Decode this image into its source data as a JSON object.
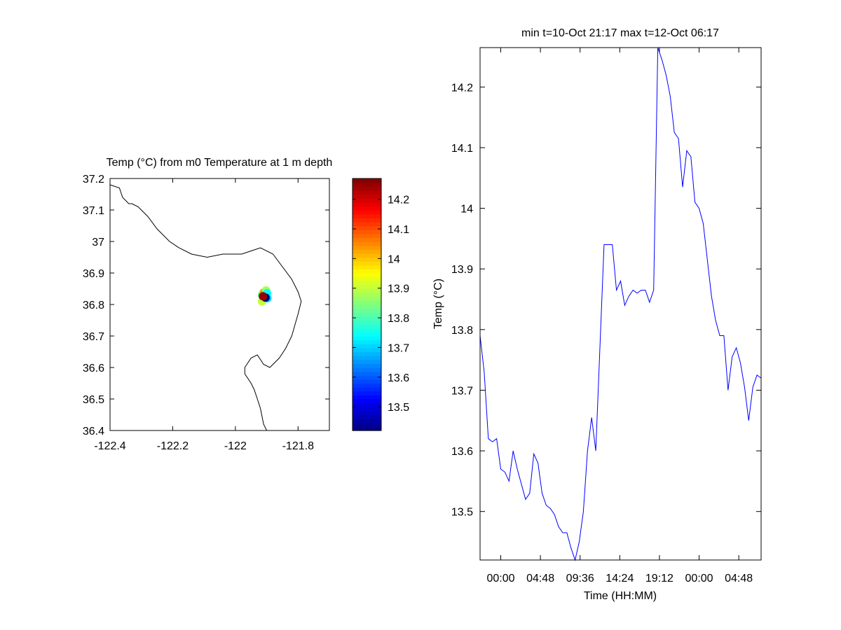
{
  "colors": {
    "axis": "#000000",
    "series": "#0000ff",
    "background": "#ffffff"
  },
  "chart_data": [
    {
      "type": "map",
      "title": "Temp (°C) from m0 Temperature at 1 m depth",
      "xlim": [
        -122.4,
        -121.7
      ],
      "ylim": [
        36.4,
        37.2
      ],
      "xticks": [
        -122.4,
        -122.2,
        -122,
        -121.8
      ],
      "xtick_labels": [
        "-122.4",
        "-122.2",
        "-122",
        "-121.8"
      ],
      "yticks": [
        37.2,
        37.1,
        37.0,
        36.9,
        36.8,
        36.7,
        36.6,
        36.5,
        36.4
      ],
      "ytick_labels": [
        "37.2",
        "37.1",
        "37",
        "36.9",
        "36.8",
        "36.7",
        "36.6",
        "36.5",
        "36.4"
      ],
      "coastline": [
        [
          -122.4,
          37.18
        ],
        [
          -122.37,
          37.17
        ],
        [
          -122.36,
          37.14
        ],
        [
          -122.34,
          37.12
        ],
        [
          -122.33,
          37.12
        ],
        [
          -122.31,
          37.11
        ],
        [
          -122.28,
          37.08
        ],
        [
          -122.25,
          37.04
        ],
        [
          -122.21,
          37.0
        ],
        [
          -122.18,
          36.98
        ],
        [
          -122.14,
          36.96
        ],
        [
          -122.09,
          36.95
        ],
        [
          -122.04,
          36.96
        ],
        [
          -121.98,
          36.96
        ],
        [
          -121.95,
          36.97
        ],
        [
          -121.92,
          36.98
        ],
        [
          -121.88,
          36.96
        ],
        [
          -121.85,
          36.92
        ],
        [
          -121.82,
          36.88
        ],
        [
          -121.8,
          36.84
        ],
        [
          -121.79,
          36.81
        ],
        [
          -121.8,
          36.77
        ],
        [
          -121.82,
          36.7
        ],
        [
          -121.84,
          36.66
        ],
        [
          -121.86,
          36.63
        ],
        [
          -121.89,
          36.6
        ],
        [
          -121.91,
          36.61
        ],
        [
          -121.93,
          36.64
        ],
        [
          -121.95,
          36.63
        ],
        [
          -121.97,
          36.6
        ],
        [
          -121.97,
          36.58
        ],
        [
          -121.95,
          36.55
        ],
        [
          -121.94,
          36.53
        ],
        [
          -121.93,
          36.5
        ],
        [
          -121.92,
          36.47
        ],
        [
          -121.91,
          36.42
        ],
        [
          -121.9,
          36.4
        ]
      ],
      "colorbar": {
        "min": 13.42,
        "max": 14.27,
        "ticks": [
          13.5,
          13.6,
          13.7,
          13.8,
          13.9,
          14.0,
          14.1,
          14.2
        ],
        "tick_labels": [
          "13.5",
          "13.6",
          "13.7",
          "13.8",
          "13.9",
          "14",
          "14.1",
          "14.2"
        ]
      },
      "points": [
        {
          "lon": -121.915,
          "lat": 36.81,
          "value": 13.9
        },
        {
          "lon": -121.915,
          "lat": 36.83,
          "value": 13.82
        },
        {
          "lon": -121.91,
          "lat": 36.838,
          "value": 14.02
        },
        {
          "lon": -121.905,
          "lat": 36.84,
          "value": 13.7
        },
        {
          "lon": -121.902,
          "lat": 36.845,
          "value": 13.88
        },
        {
          "lon": -121.899,
          "lat": 36.836,
          "value": 13.74
        },
        {
          "lon": -121.898,
          "lat": 36.82,
          "value": 13.7
        },
        {
          "lon": -121.904,
          "lat": 36.822,
          "value": 13.42
        },
        {
          "lon": -121.912,
          "lat": 36.826,
          "value": 14.25
        }
      ]
    },
    {
      "type": "line",
      "title": "min t=10-Oct 21:17 max t=12-Oct 06:17",
      "xlabel": "Time (HH:MM)",
      "ylabel": "Temp (°C)",
      "xlim": [
        -2.5,
        31.5
      ],
      "ylim": [
        13.42,
        14.265
      ],
      "xticks": [
        0,
        4.8,
        9.6,
        14.4,
        19.2,
        24.0,
        28.8
      ],
      "xtick_labels": [
        "00:00",
        "04:48",
        "09:36",
        "14:24",
        "19:12",
        "00:00",
        "04:48"
      ],
      "yticks": [
        13.5,
        13.6,
        13.7,
        13.8,
        13.9,
        14.0,
        14.1,
        14.2
      ],
      "ytick_labels": [
        "13.5",
        "13.6",
        "13.7",
        "13.8",
        "13.9",
        "14",
        "14.1",
        "14.2"
      ],
      "series": [
        {
          "name": "Temp",
          "x": [
            -2.5,
            -2.0,
            -1.5,
            -1.0,
            -0.5,
            0.0,
            0.5,
            1.0,
            1.5,
            2.0,
            2.5,
            3.0,
            3.5,
            4.0,
            4.5,
            5.0,
            5.5,
            6.0,
            6.5,
            7.0,
            7.5,
            8.0,
            8.5,
            9.0,
            9.5,
            10.0,
            10.5,
            11.0,
            11.5,
            12.0,
            12.5,
            13.0,
            13.5,
            14.0,
            14.5,
            15.0,
            15.5,
            16.0,
            16.5,
            17.0,
            17.5,
            18.0,
            18.5,
            19.0,
            19.5,
            20.0,
            20.5,
            21.0,
            21.5,
            22.0,
            22.5,
            23.0,
            23.5,
            24.0,
            24.5,
            25.0,
            25.5,
            26.0,
            26.5,
            27.0,
            27.5,
            28.0,
            28.5,
            29.0,
            29.5,
            30.0,
            30.5,
            31.0,
            31.5
          ],
          "values": [
            13.79,
            13.73,
            13.62,
            13.615,
            13.62,
            13.57,
            13.565,
            13.55,
            13.6,
            13.57,
            13.545,
            13.52,
            13.53,
            13.595,
            13.58,
            13.53,
            13.51,
            13.505,
            13.495,
            13.475,
            13.465,
            13.465,
            13.44,
            13.42,
            13.45,
            13.5,
            13.6,
            13.655,
            13.6,
            13.77,
            13.94,
            13.94,
            13.94,
            13.865,
            13.88,
            13.84,
            13.855,
            13.865,
            13.86,
            13.865,
            13.865,
            13.845,
            13.865,
            14.265,
            14.245,
            14.22,
            14.185,
            14.125,
            14.115,
            14.035,
            14.095,
            14.085,
            14.01,
            14.0,
            13.975,
            13.915,
            13.855,
            13.815,
            13.79,
            13.79,
            13.7,
            13.755,
            13.77,
            13.745,
            13.705,
            13.65,
            13.705,
            13.725,
            13.72
          ]
        }
      ]
    }
  ]
}
